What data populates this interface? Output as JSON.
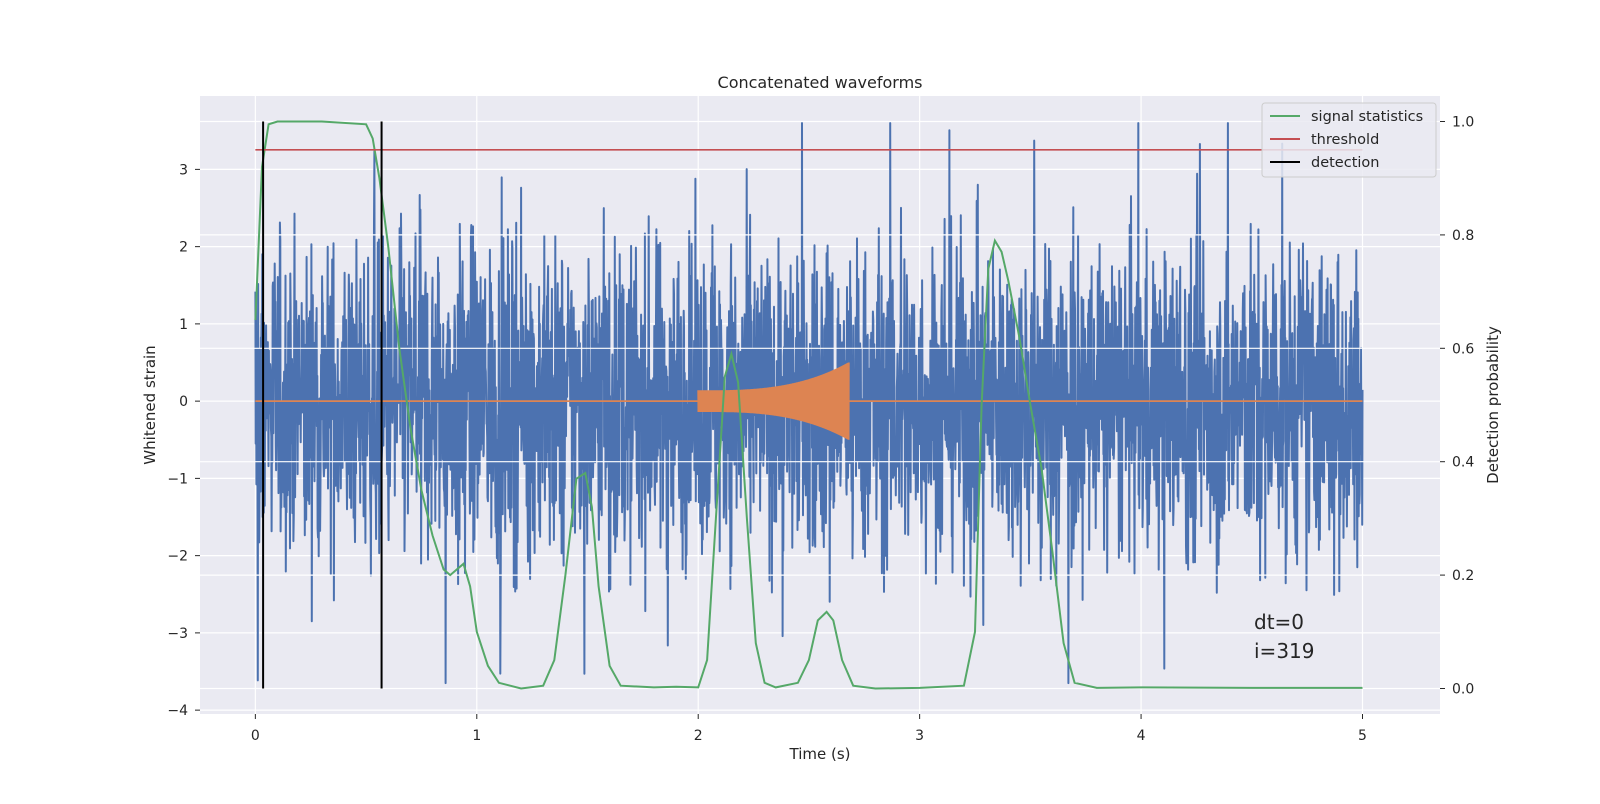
{
  "chart_data": {
    "type": "line",
    "title": "Concatenated waveforms",
    "xlabel": "Time (s)",
    "ylabel": "Whitened strain",
    "y2label": "Detection probability",
    "xlim": [
      -0.25,
      5.35
    ],
    "ylim": [
      -4.05,
      3.95
    ],
    "y2lim": [
      -0.045,
      1.045
    ],
    "xticks": [
      0,
      1,
      2,
      3,
      4,
      5
    ],
    "yticks": [
      -4,
      -3,
      -2,
      -1,
      0,
      1,
      2,
      3
    ],
    "y2ticks": [
      0.0,
      0.2,
      0.4,
      0.6,
      0.8,
      1.0
    ],
    "grid": true,
    "legend_placement": "top-right",
    "colors": {
      "strain": "#4c72b0",
      "template": "#dd8452",
      "signal_statistics": "#55a868",
      "threshold": "#c44e52",
      "detection": "#000000",
      "background": "#eaeaf2",
      "grid": "#ffffff"
    },
    "series": [
      {
        "name": "signal statistics",
        "axis": "right",
        "x": [
          0.0,
          0.03,
          0.06,
          0.1,
          0.15,
          0.3,
          0.5,
          0.53,
          0.56,
          0.6,
          0.65,
          0.7,
          0.75,
          0.8,
          0.85,
          0.88,
          0.91,
          0.94,
          0.97,
          1.0,
          1.05,
          1.1,
          1.2,
          1.3,
          1.35,
          1.4,
          1.45,
          1.49,
          1.52,
          1.55,
          1.6,
          1.65,
          1.8,
          1.9,
          2.0,
          2.04,
          2.08,
          2.12,
          2.15,
          2.18,
          2.22,
          2.26,
          2.3,
          2.35,
          2.45,
          2.5,
          2.54,
          2.58,
          2.61,
          2.65,
          2.7,
          2.8,
          3.0,
          3.2,
          3.25,
          3.28,
          3.31,
          3.34,
          3.37,
          3.4,
          3.45,
          3.5,
          3.55,
          3.6,
          3.65,
          3.7,
          3.8,
          4.0,
          4.5,
          5.0
        ],
        "y": [
          0.65,
          0.92,
          0.995,
          1.0,
          1.0,
          1.0,
          0.995,
          0.97,
          0.9,
          0.78,
          0.6,
          0.46,
          0.35,
          0.27,
          0.21,
          0.2,
          0.21,
          0.22,
          0.18,
          0.1,
          0.04,
          0.01,
          0.0,
          0.005,
          0.05,
          0.2,
          0.37,
          0.38,
          0.32,
          0.18,
          0.04,
          0.005,
          0.002,
          0.003,
          0.002,
          0.05,
          0.3,
          0.55,
          0.59,
          0.54,
          0.3,
          0.08,
          0.01,
          0.002,
          0.01,
          0.05,
          0.12,
          0.135,
          0.12,
          0.05,
          0.005,
          0.0,
          0.001,
          0.005,
          0.1,
          0.5,
          0.74,
          0.79,
          0.77,
          0.72,
          0.62,
          0.5,
          0.39,
          0.24,
          0.08,
          0.01,
          0.001,
          0.002,
          0.001,
          0.001
        ]
      },
      {
        "name": "threshold",
        "axis": "right",
        "x": [
          0.0,
          5.0
        ],
        "y": [
          0.95,
          0.95
        ]
      },
      {
        "name": "detection",
        "axis": "right",
        "x_events": [
          0.035,
          0.57
        ]
      },
      {
        "axis": "left",
        "kind": "noise-envelope",
        "x": [
          0.0,
          5.0
        ],
        "y_core": [
          -0.75,
          0.75
        ],
        "y_spike_range": [
          -3.65,
          3.6
        ]
      },
      {
        "axis": "left",
        "kind": "chirp",
        "x": [
          2.0,
          2.68
        ],
        "y_amplitude_start": 0.14,
        "y_amplitude_end": 0.5
      }
    ],
    "annotations": [
      "dt=0",
      "i=319"
    ]
  }
}
